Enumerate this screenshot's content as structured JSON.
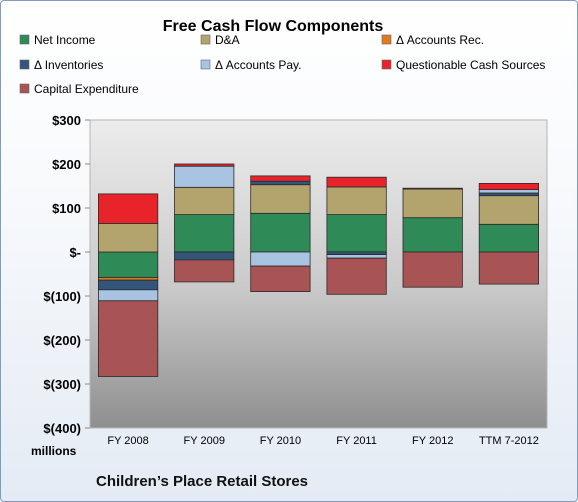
{
  "chart_data": {
    "type": "bar",
    "stacked": true,
    "title": "Free Cash Flow Components",
    "subtitle": "Children’s Place Retail Stores",
    "ylabel": "millions",
    "xlabel": "",
    "ylim": [
      -400,
      300
    ],
    "yticks": [
      300,
      200,
      100,
      0,
      -100,
      -200,
      -300,
      -400
    ],
    "ytick_labels": [
      "$300",
      "$200",
      "$100",
      "$-",
      "$(100)",
      "$(200)",
      "$(300)",
      "$(400)"
    ],
    "grid": false,
    "legend_position": "top",
    "categories": [
      "FY 2008",
      "FY 2009",
      "FY 2010",
      "FY 2011",
      "FY 2012",
      "TTM 7-2012"
    ],
    "series": [
      {
        "name": "Net Income",
        "color": "#2e8b57",
        "values": [
          -58,
          85,
          88,
          85,
          78,
          63
        ]
      },
      {
        "name": "D&A",
        "color": "#b3a46e",
        "values": [
          65,
          62,
          65,
          63,
          65,
          65
        ]
      },
      {
        "name": "Δ Accounts Rec.",
        "color": "#e07b22",
        "values": [
          -6,
          0,
          0,
          0,
          0,
          0
        ]
      },
      {
        "name": "Δ Inventories",
        "color": "#34557a",
        "values": [
          -22,
          -18,
          8,
          -6,
          0,
          6
        ]
      },
      {
        "name": "Δ Accounts Pay.",
        "color": "#a9c3e2",
        "values": [
          -25,
          48,
          -32,
          -8,
          0,
          8
        ]
      },
      {
        "name": "Questionable Cash Sources",
        "color": "#e8232a",
        "values": [
          67,
          5,
          12,
          22,
          2,
          14
        ]
      },
      {
        "name": "Capital Expenditure",
        "color": "#a85454",
        "values": [
          -172,
          -50,
          -58,
          -82,
          -80,
          -73
        ]
      }
    ]
  }
}
